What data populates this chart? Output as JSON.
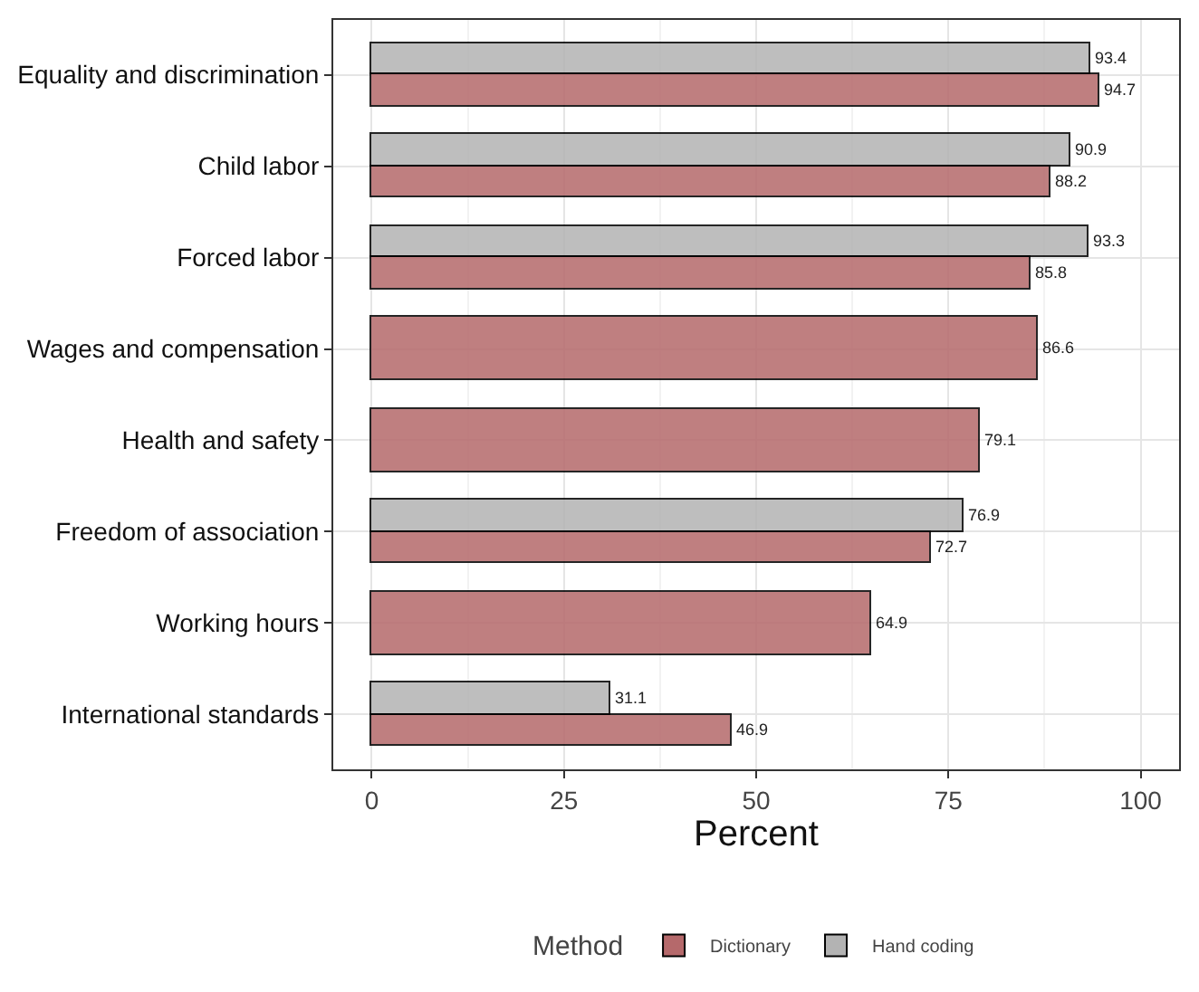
{
  "chart_data": {
    "type": "bar",
    "orientation": "horizontal",
    "xlabel": "Percent",
    "legend_title": "Method",
    "legend": "bottom",
    "grid": true,
    "data_labels": true,
    "categories": [
      "Equality and discrimination",
      "Child labor",
      "Forced labor",
      "Wages and compensation",
      "Health and safety",
      "Freedom of association",
      "Working hours",
      "International standards"
    ],
    "xlim": [
      -5,
      105
    ],
    "xticks": [
      0,
      25,
      50,
      75,
      100
    ],
    "series": [
      {
        "name": "Dictionary",
        "color": "#b5696b",
        "values": [
          94.7,
          88.2,
          85.8,
          86.6,
          79.1,
          72.7,
          64.9,
          46.9
        ]
      },
      {
        "name": "Hand coding",
        "color": "#b3b3b3",
        "values": [
          93.4,
          90.9,
          93.3,
          null,
          null,
          76.9,
          null,
          31.1
        ]
      }
    ]
  }
}
